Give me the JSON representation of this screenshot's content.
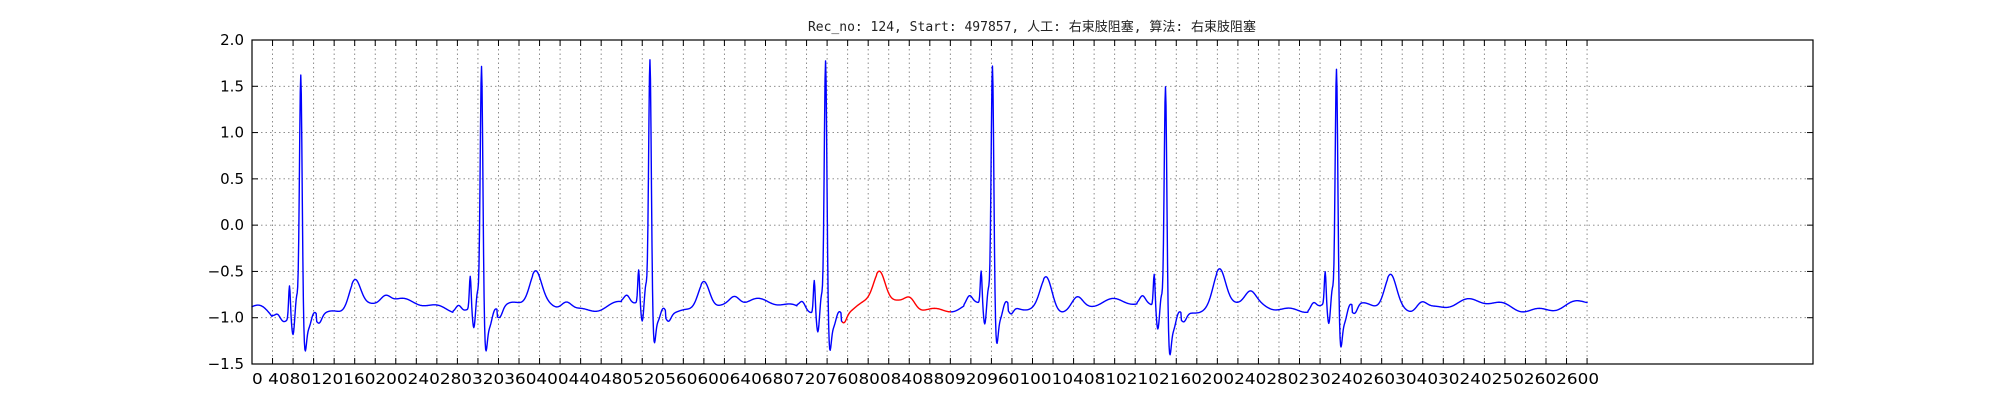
{
  "chart_data": {
    "type": "line",
    "title": "Rec_no: 124, Start: 497857, 人工: 右束肢阻塞, 算法: 右束肢阻塞",
    "xlabel": "",
    "ylabel": "",
    "xlim": [
      0,
      3040
    ],
    "ylim": [
      -1.5,
      2.0
    ],
    "grid": true,
    "yticks": [
      2.0,
      1.5,
      1.0,
      0.5,
      0.0,
      -0.5,
      -1.0,
      -1.5
    ],
    "ytick_labels": [
      "2.0",
      "1.5",
      "1.0",
      "0.5",
      "0.0",
      "−0.5",
      "−1.0",
      "−1.5"
    ],
    "xticks": [
      0,
      40,
      80,
      120,
      160,
      200,
      240,
      280,
      320,
      360,
      400,
      440,
      480,
      520,
      560,
      600,
      640,
      680,
      720,
      760,
      800,
      840,
      880,
      920,
      960,
      1000,
      1040,
      1080,
      1120,
      1160,
      1200,
      1240,
      1280,
      1320,
      1360,
      1400,
      1440,
      1480,
      1520,
      1560,
      1600,
      1640,
      1680,
      1720,
      1760,
      1800,
      1840,
      1880,
      1920,
      1960,
      2000,
      2040,
      2080,
      2120,
      2160,
      2200,
      2240,
      2280,
      2320,
      2360,
      2400,
      2440,
      2480,
      2520,
      2560,
      2600
    ],
    "xtick_labels_text": "0 4080 120 160200 240280 320360 400440 480520 560600 640680 720760 800840 880920 960 1000 1040 1080 1120 1160 1200 1240 1280 1320 1360 1400 1440 1480 1520 1560 1600 1640 1680 1720 1760 1800 1840 1880 1920 1960 2000 2040 2080 2120 2160 2200 2240 2280 2320 2360 2400 2440 2480 2520 2560 2600",
    "x_tick_label_overlap_rendered": "0 4080120160200240280320360400440480520560600640680720760800840880920960100104081021021602002402802302402603040302402502602600",
    "series": [
      {
        "color": "#0000ff",
        "segments": [
          [
            0,
            1150
          ],
          [
            1360,
            2600
          ]
        ]
      },
      {
        "color": "#ff0000",
        "segments": [
          [
            1150,
            1360
          ]
        ]
      }
    ],
    "beats": {
      "baseline": -0.87,
      "r_peak_x": [
        95,
        447,
        775,
        1117,
        1442,
        1779,
        2112
      ],
      "r_peak_y": [
        1.42,
        1.5,
        1.48,
        1.57,
        1.45,
        1.33,
        1.43
      ]
    }
  }
}
